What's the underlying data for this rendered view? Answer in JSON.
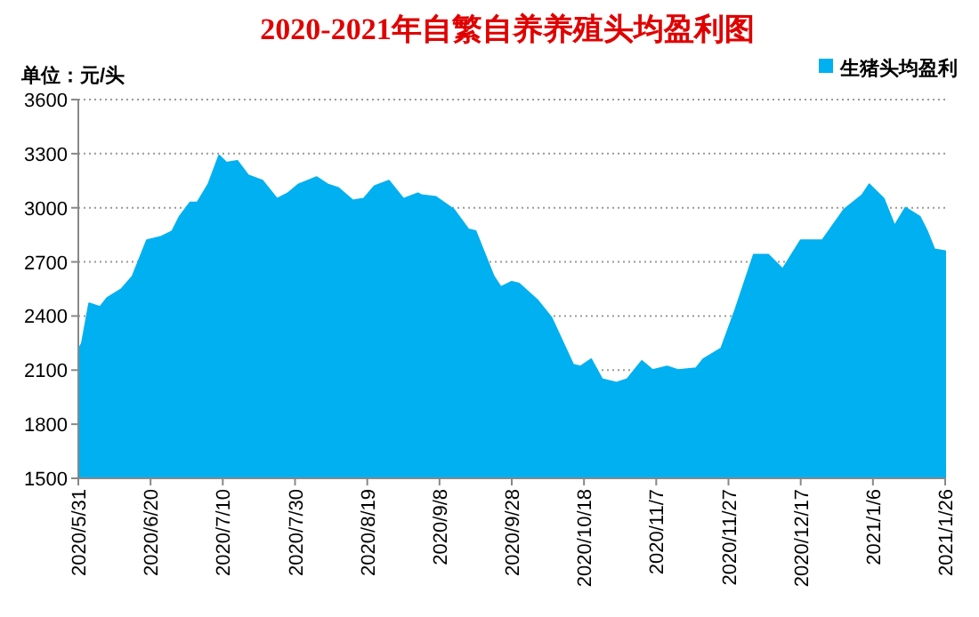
{
  "chart_data": {
    "type": "area",
    "title": "2020-2021年自繁自养养殖头均盈利图",
    "annotations": [
      "单位：元/头"
    ],
    "legend": "top right",
    "grid": "y",
    "xlim": [
      "2020-05-31",
      "2021-01-26"
    ],
    "xticks": [
      {
        "value": "2020-05-31",
        "label": "2020/5/31"
      },
      {
        "value": "2020-06-20",
        "label": "2020/6/20"
      },
      {
        "value": "2020-07-10",
        "label": "2020/7/10"
      },
      {
        "value": "2020-07-30",
        "label": "2020/7/30"
      },
      {
        "value": "2020-08-19",
        "label": "2020/8/19"
      },
      {
        "value": "2020-09-08",
        "label": "2020/9/8"
      },
      {
        "value": "2020-09-28",
        "label": "2020/9/28"
      },
      {
        "value": "2020-10-18",
        "label": "2020/10/18"
      },
      {
        "value": "2020-11-07",
        "label": "2020/11/7"
      },
      {
        "value": "2020-11-27",
        "label": "2020/11/27"
      },
      {
        "value": "2020-12-17",
        "label": "2020/12/17"
      },
      {
        "value": "2021-01-06",
        "label": "2021/1/6"
      },
      {
        "value": "2021-01-26",
        "label": "2021/1/26"
      }
    ],
    "ylim": [
      1500,
      3600
    ],
    "yticks": [
      1500,
      1800,
      2100,
      2400,
      2700,
      3000,
      3300,
      3600
    ],
    "x": [
      "2020-05-31",
      "2020-06-01",
      "2020-06-03",
      "2020-06-06",
      "2020-06-08",
      "2020-06-12",
      "2020-06-15",
      "2020-06-19",
      "2020-06-23",
      "2020-06-26",
      "2020-06-28",
      "2020-07-01",
      "2020-07-03",
      "2020-07-06",
      "2020-07-09",
      "2020-07-11",
      "2020-07-14",
      "2020-07-17",
      "2020-07-21",
      "2020-07-25",
      "2020-07-28",
      "2020-07-31",
      "2020-08-05",
      "2020-08-08",
      "2020-08-11",
      "2020-08-15",
      "2020-08-18",
      "2020-08-21",
      "2020-08-25",
      "2020-08-29",
      "2020-09-02",
      "2020-09-03",
      "2020-09-07",
      "2020-09-12",
      "2020-09-16",
      "2020-09-18",
      "2020-09-23",
      "2020-09-25",
      "2020-09-28",
      "2020-09-30",
      "2020-10-05",
      "2020-10-09",
      "2020-10-15",
      "2020-10-17",
      "2020-10-20",
      "2020-10-23",
      "2020-10-27",
      "2020-10-30",
      "2020-11-03",
      "2020-11-06",
      "2020-11-10",
      "2020-11-13",
      "2020-11-18",
      "2020-11-20",
      "2020-11-25",
      "2020-11-29",
      "2020-12-04",
      "2020-12-08",
      "2020-12-12",
      "2020-12-17",
      "2020-12-23",
      "2020-12-29",
      "2021-01-03",
      "2021-01-05",
      "2021-01-09",
      "2021-01-12",
      "2021-01-15",
      "2021-01-19",
      "2021-01-21",
      "2021-01-23",
      "2021-01-26"
    ],
    "series": [
      {
        "name": "生猪头均盈利",
        "color": "#00b0f0",
        "values": [
          2210,
          2250,
          2470,
          2450,
          2500,
          2550,
          2620,
          2820,
          2840,
          2870,
          2950,
          3030,
          3030,
          3130,
          3290,
          3250,
          3260,
          3180,
          3150,
          3050,
          3080,
          3130,
          3170,
          3130,
          3110,
          3040,
          3050,
          3120,
          3150,
          3050,
          3080,
          3070,
          3060,
          2990,
          2880,
          2870,
          2620,
          2560,
          2590,
          2580,
          2490,
          2390,
          2130,
          2120,
          2160,
          2050,
          2030,
          2050,
          2150,
          2100,
          2120,
          2100,
          2110,
          2160,
          2220,
          2440,
          2740,
          2740,
          2660,
          2820,
          2820,
          2990,
          3070,
          3130,
          3050,
          2900,
          3000,
          2950,
          2870,
          2770,
          2760
        ]
      }
    ]
  }
}
